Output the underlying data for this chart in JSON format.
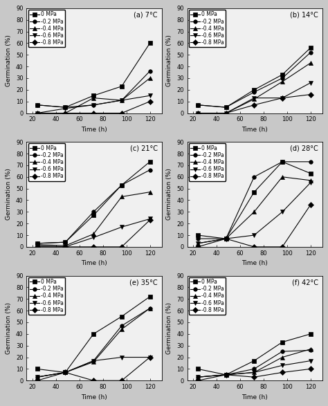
{
  "time": [
    24,
    48,
    72,
    96,
    120
  ],
  "panels": [
    {
      "label": "(a) 7°C",
      "series": {
        "0 MPa": [
          7,
          5,
          15,
          23,
          60
        ],
        "-0.2 MPa": [
          7,
          5,
          7,
          11,
          36
        ],
        "-0.4 MPa": [
          0,
          0,
          13,
          11,
          30
        ],
        "-0.6 MPa": [
          0,
          4,
          7,
          11,
          15
        ],
        "-0.8 MPa": [
          0,
          0,
          0,
          0,
          10
        ]
      }
    },
    {
      "label": "(b) 14°C",
      "series": {
        "0 MPa": [
          7,
          5,
          20,
          33,
          56
        ],
        "-0.2 MPa": [
          7,
          5,
          18,
          30,
          52
        ],
        "-0.4 MPa": [
          0,
          0,
          12,
          27,
          43
        ],
        "-0.6 MPa": [
          0,
          0,
          13,
          13,
          26
        ],
        "-0.8 MPa": [
          0,
          0,
          7,
          13,
          16
        ]
      }
    },
    {
      "label": "(c) 21°C",
      "series": {
        "0 MPa": [
          3,
          4,
          27,
          53,
          73
        ],
        "-0.2 MPa": [
          3,
          4,
          30,
          53,
          66
        ],
        "-0.4 MPa": [
          2,
          1,
          11,
          43,
          47
        ],
        "-0.6 MPa": [
          1,
          0,
          8,
          17,
          24
        ],
        "-0.8 MPa": [
          0,
          0,
          0,
          0,
          23
        ]
      }
    },
    {
      "label": "(d) 28°C",
      "series": {
        "0 MPa": [
          10,
          7,
          47,
          73,
          63
        ],
        "-0.2 MPa": [
          7,
          7,
          60,
          73,
          73
        ],
        "-0.4 MPa": [
          3,
          7,
          30,
          60,
          57
        ],
        "-0.6 MPa": [
          3,
          7,
          10,
          30,
          55
        ],
        "-0.8 MPa": [
          0,
          7,
          0,
          0,
          36
        ]
      }
    },
    {
      "label": "(e) 35°C",
      "series": {
        "0 MPa": [
          10,
          7,
          40,
          55,
          72
        ],
        "-0.2 MPa": [
          3,
          7,
          17,
          47,
          62
        ],
        "-0.4 MPa": [
          3,
          7,
          16,
          44,
          62
        ],
        "-0.6 MPa": [
          3,
          7,
          17,
          20,
          20
        ],
        "-0.8 MPa": [
          0,
          7,
          0,
          0,
          20
        ]
      }
    },
    {
      "label": "(f) 42°C",
      "series": {
        "0 MPa": [
          10,
          5,
          17,
          33,
          40
        ],
        "-0.2 MPa": [
          3,
          5,
          10,
          25,
          26
        ],
        "-0.4 MPa": [
          3,
          5,
          7,
          20,
          27
        ],
        "-0.6 MPa": [
          3,
          5,
          7,
          13,
          17
        ],
        "-0.8 MPa": [
          0,
          5,
          3,
          7,
          10
        ]
      }
    }
  ],
  "marker_styles": {
    "0 MPa": {
      "marker": "s",
      "linestyle": "-",
      "markersize": 4
    },
    "-0.2 MPa": {
      "marker": "o",
      "linestyle": "-",
      "markersize": 4
    },
    "-0.4 MPa": {
      "marker": "^",
      "linestyle": "-",
      "markersize": 4
    },
    "-0.6 MPa": {
      "marker": "v",
      "linestyle": "-",
      "markersize": 4
    },
    "-0.8 MPa": {
      "marker": "D",
      "linestyle": "-",
      "markersize": 4
    }
  },
  "ylim": [
    0,
    90
  ],
  "xlim": [
    15,
    130
  ],
  "yticks": [
    0,
    10,
    20,
    30,
    40,
    50,
    60,
    70,
    80,
    90
  ],
  "xticks": [
    20,
    40,
    60,
    80,
    100,
    120
  ],
  "xlabel": "Time (h)",
  "ylabel": "Germination (%)",
  "legend_keys": [
    "0 MPa",
    "-0.2 MPa",
    "-0.4 MPa",
    "-0.6 MPa",
    "-0.8 MPa"
  ],
  "ax_facecolor": "#f0f0f0",
  "fig_facecolor": "#c8c8c8"
}
